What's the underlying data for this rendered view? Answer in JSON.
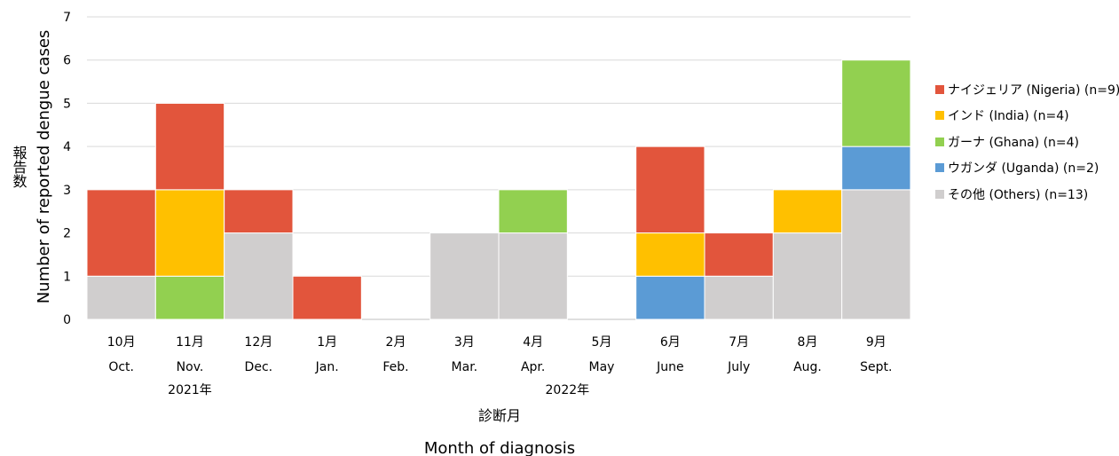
{
  "chart_data": {
    "type": "bar",
    "stacked": true,
    "title": "",
    "ylabel_ja": "報告数",
    "ylabel": "Number of reported dengue cases",
    "xlabel_ja": "診断月",
    "xlabel": "Month of diagnosis",
    "ylim": [
      0,
      7
    ],
    "yticks": [
      "0",
      "1",
      "2",
      "3",
      "4",
      "5",
      "6",
      "7"
    ],
    "grid": true,
    "legend_position": "right",
    "categories_ja": [
      "10月",
      "11月",
      "12月",
      "1月",
      "2月",
      "3月",
      "4月",
      "5月",
      "6月",
      "7月",
      "8月",
      "9月"
    ],
    "categories": [
      "Oct.",
      "Nov.",
      "Dec.",
      "Jan.",
      "Feb.",
      "Mar.",
      "Apr.",
      "May",
      "June",
      "July",
      "Aug.",
      "Sept."
    ],
    "years": [
      {
        "label": "2021年",
        "category_index": 1
      },
      {
        "label": "2022年",
        "category_index": 6.5
      }
    ],
    "series": [
      {
        "name": "その他 (Others) (n=13)",
        "color": "#D0CECE",
        "values": [
          1,
          0,
          2,
          0,
          0,
          2,
          2,
          0,
          0,
          1,
          2,
          3
        ]
      },
      {
        "name": "ウガンダ (Uganda) (n=2)",
        "color": "#5B9BD5",
        "values": [
          0,
          0,
          0,
          0,
          0,
          0,
          0,
          0,
          1,
          0,
          0,
          1
        ]
      },
      {
        "name": "ガーナ (Ghana) (n=4)",
        "color": "#92D050",
        "values": [
          0,
          1,
          0,
          0,
          0,
          0,
          1,
          0,
          0,
          0,
          0,
          2
        ]
      },
      {
        "name": "インド (India) (n=4)",
        "color": "#FFC000",
        "values": [
          0,
          2,
          0,
          0,
          0,
          0,
          0,
          0,
          1,
          0,
          1,
          0
        ]
      },
      {
        "name": "ナイジェリア (Nigeria) (n=9)",
        "color": "#E2553C",
        "values": [
          2,
          2,
          1,
          1,
          0,
          0,
          0,
          0,
          2,
          1,
          0,
          0
        ]
      }
    ],
    "legend_order": [
      4,
      3,
      2,
      1,
      0
    ]
  }
}
